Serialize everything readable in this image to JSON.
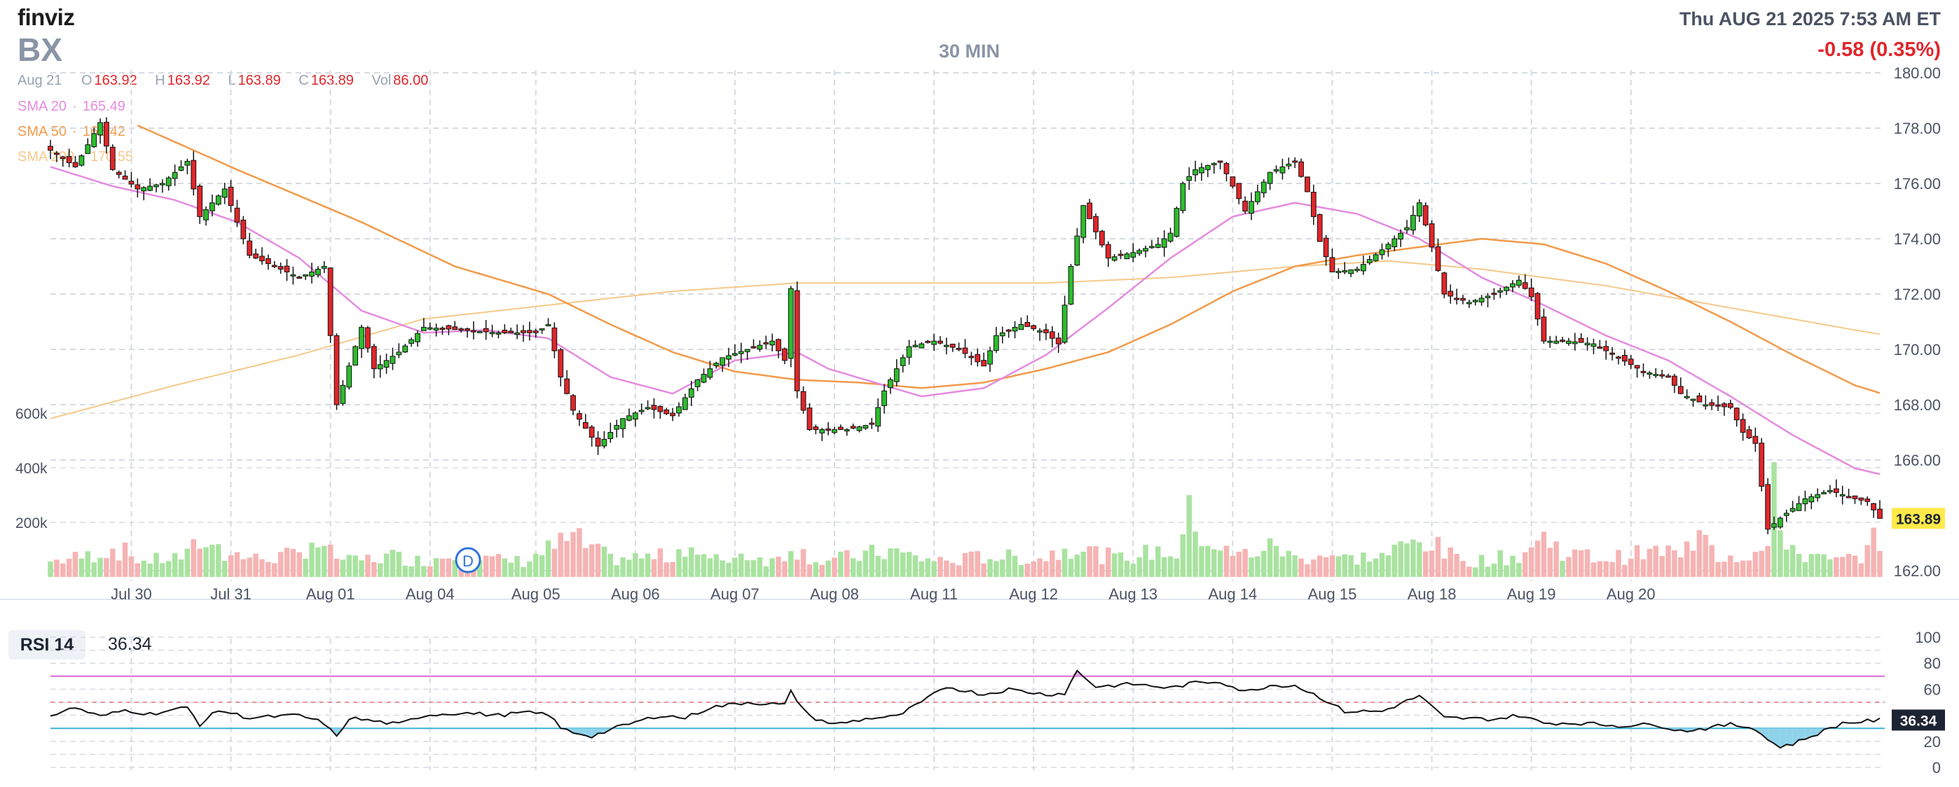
{
  "header": {
    "logo": "finviz",
    "ticker": "BX",
    "timeframe": "30 MIN",
    "datetime": "Thu AUG 21 2025 7:53 AM ET",
    "change": "-0.58 (0.35%)"
  },
  "ohlc": {
    "date": "Aug 21",
    "open_label": "O",
    "open": "163.92",
    "high_label": "H",
    "high": "163.92",
    "low_label": "L",
    "low": "163.89",
    "close_label": "C",
    "close": "163.89",
    "vol_label": "Vol",
    "vol": "86.00"
  },
  "indicators": {
    "sma20": {
      "label": "SMA 20",
      "value": "165.49",
      "color": "#e58be0"
    },
    "sma50": {
      "label": "SMA 50",
      "value": "168.42",
      "color": "#f29a4a"
    },
    "sma200": {
      "label": "SMA 200",
      "value": "170.55",
      "color": "#f5c98a"
    }
  },
  "rsi": {
    "label": "RSI 14",
    "value": "36.34"
  },
  "colors": {
    "up": "#2dbd2d",
    "down": "#e0262a",
    "vol_up": "#a9e3a0",
    "vol_down": "#f6b3b3",
    "grid": "#d7dbe2",
    "text": "#4b5263"
  },
  "earnings_marker": "D",
  "chart_data": [
    {
      "type": "candlestick",
      "title": "BX",
      "ylim": [
        161.5,
        180.0
      ],
      "price_ticks": [
        "180.00",
        "178.00",
        "176.00",
        "174.00",
        "172.00",
        "170.00",
        "168.00",
        "166.00",
        "162.00"
      ],
      "last_price": "163.89",
      "x_labels": [
        "Jul 30",
        "Jul 31",
        "Aug 01",
        "Aug 04",
        "Aug 05",
        "Aug 06",
        "Aug 07",
        "Aug 08",
        "Aug 11",
        "Aug 12",
        "Aug 13",
        "Aug 14",
        "Aug 15",
        "Aug 18",
        "Aug 19",
        "Aug 20"
      ],
      "volume_ticks": [
        "600k",
        "400k",
        "200k"
      ],
      "price_anchors": [
        [
          0,
          177.2
        ],
        [
          4,
          176.6
        ],
        [
          8,
          178.2
        ],
        [
          10,
          176.5
        ],
        [
          14,
          175.8
        ],
        [
          18,
          176.0
        ],
        [
          22,
          176.8
        ],
        [
          24,
          174.8
        ],
        [
          28,
          175.8
        ],
        [
          32,
          173.4
        ],
        [
          36,
          173.0
        ],
        [
          40,
          172.6
        ],
        [
          44,
          173.0
        ],
        [
          46,
          168.0
        ],
        [
          50,
          170.8
        ],
        [
          52,
          169.3
        ],
        [
          56,
          169.9
        ],
        [
          60,
          170.8
        ],
        [
          66,
          170.7
        ],
        [
          72,
          170.6
        ],
        [
          78,
          170.6
        ],
        [
          80,
          170.9
        ],
        [
          82,
          169.0
        ],
        [
          84,
          167.8
        ],
        [
          88,
          166.5
        ],
        [
          92,
          167.5
        ],
        [
          96,
          167.9
        ],
        [
          100,
          167.6
        ],
        [
          104,
          168.9
        ],
        [
          108,
          169.7
        ],
        [
          112,
          170.0
        ],
        [
          116,
          170.3
        ],
        [
          118,
          169.6
        ],
        [
          119,
          172.2
        ],
        [
          120,
          168.5
        ],
        [
          122,
          167.1
        ],
        [
          128,
          167.1
        ],
        [
          132,
          167.3
        ],
        [
          134,
          168.5
        ],
        [
          138,
          170.1
        ],
        [
          142,
          170.3
        ],
        [
          146,
          170.0
        ],
        [
          150,
          169.4
        ],
        [
          152,
          170.5
        ],
        [
          156,
          170.9
        ],
        [
          160,
          170.6
        ],
        [
          162,
          170.2
        ],
        [
          164,
          173.0
        ],
        [
          166,
          175.2
        ],
        [
          170,
          173.3
        ],
        [
          174,
          173.5
        ],
        [
          178,
          173.8
        ],
        [
          180,
          174.2
        ],
        [
          182,
          176.0
        ],
        [
          184,
          176.5
        ],
        [
          188,
          176.8
        ],
        [
          192,
          175.0
        ],
        [
          196,
          176.4
        ],
        [
          200,
          176.8
        ],
        [
          202,
          175.7
        ],
        [
          204,
          173.9
        ],
        [
          206,
          172.8
        ],
        [
          210,
          172.9
        ],
        [
          214,
          173.6
        ],
        [
          218,
          174.4
        ],
        [
          220,
          175.3
        ],
        [
          222,
          173.7
        ],
        [
          224,
          172.0
        ],
        [
          228,
          171.7
        ],
        [
          232,
          172.0
        ],
        [
          236,
          172.5
        ],
        [
          238,
          171.9
        ],
        [
          240,
          170.3
        ],
        [
          244,
          170.3
        ],
        [
          248,
          170.2
        ],
        [
          252,
          169.7
        ],
        [
          256,
          169.2
        ],
        [
          260,
          169.0
        ],
        [
          262,
          168.4
        ],
        [
          266,
          168.0
        ],
        [
          270,
          167.9
        ],
        [
          272,
          167.0
        ],
        [
          274,
          166.6
        ],
        [
          276,
          163.5
        ],
        [
          278,
          163.9
        ],
        [
          282,
          164.6
        ],
        [
          286,
          164.9
        ],
        [
          290,
          164.6
        ],
        [
          292,
          164.5
        ],
        [
          294,
          163.89
        ]
      ],
      "volume_anchors": [
        [
          0,
          60
        ],
        [
          6,
          80
        ],
        [
          10,
          110
        ],
        [
          12,
          95
        ],
        [
          15,
          60
        ],
        [
          22,
          80
        ],
        [
          24,
          140
        ],
        [
          26,
          110
        ],
        [
          27,
          165
        ],
        [
          28,
          95
        ],
        [
          33,
          70
        ],
        [
          40,
          85
        ],
        [
          42,
          150
        ],
        [
          44,
          100
        ],
        [
          48,
          60
        ],
        [
          55,
          80
        ],
        [
          60,
          60
        ],
        [
          66,
          100
        ],
        [
          68,
          70
        ],
        [
          76,
          60
        ],
        [
          84,
          150
        ],
        [
          86,
          120
        ],
        [
          90,
          70
        ],
        [
          100,
          80
        ],
        [
          102,
          130
        ],
        [
          106,
          60
        ],
        [
          112,
          90
        ],
        [
          116,
          60
        ],
        [
          118,
          90
        ],
        [
          119,
          130
        ],
        [
          121,
          90
        ],
        [
          124,
          60
        ],
        [
          135,
          100
        ],
        [
          140,
          70
        ],
        [
          145,
          60
        ],
        [
          150,
          80
        ],
        [
          159,
          70
        ],
        [
          165,
          130
        ],
        [
          168,
          90
        ],
        [
          172,
          70
        ],
        [
          178,
          100
        ],
        [
          181,
          90
        ],
        [
          183,
          230
        ],
        [
          186,
          140
        ],
        [
          190,
          80
        ],
        [
          194,
          100
        ],
        [
          197,
          120
        ],
        [
          200,
          70
        ],
        [
          205,
          90
        ],
        [
          208,
          70
        ],
        [
          214,
          80
        ],
        [
          221,
          150
        ],
        [
          224,
          90
        ],
        [
          228,
          60
        ],
        [
          236,
          80
        ],
        [
          240,
          150
        ],
        [
          244,
          90
        ],
        [
          250,
          70
        ],
        [
          256,
          90
        ],
        [
          260,
          100
        ],
        [
          262,
          70
        ],
        [
          264,
          150
        ],
        [
          266,
          230
        ],
        [
          268,
          80
        ],
        [
          274,
          90
        ],
        [
          276,
          110
        ],
        [
          277,
          320
        ],
        [
          278,
          180
        ],
        [
          281,
          90
        ],
        [
          286,
          60
        ],
        [
          290,
          70
        ],
        [
          292,
          110
        ],
        [
          294,
          160
        ]
      ],
      "sma20_anchors": [
        [
          0,
          176.6
        ],
        [
          10,
          175.9
        ],
        [
          20,
          175.4
        ],
        [
          30,
          174.6
        ],
        [
          40,
          173.3
        ],
        [
          50,
          171.4
        ],
        [
          60,
          170.6
        ],
        [
          70,
          170.7
        ],
        [
          80,
          170.4
        ],
        [
          90,
          169.0
        ],
        [
          100,
          168.4
        ],
        [
          110,
          169.6
        ],
        [
          120,
          169.9
        ],
        [
          125,
          169.3
        ],
        [
          140,
          168.3
        ],
        [
          150,
          168.6
        ],
        [
          160,
          169.8
        ],
        [
          170,
          171.5
        ],
        [
          180,
          173.3
        ],
        [
          190,
          174.8
        ],
        [
          200,
          175.3
        ],
        [
          210,
          174.9
        ],
        [
          220,
          174.0
        ],
        [
          230,
          172.6
        ],
        [
          240,
          171.6
        ],
        [
          250,
          170.5
        ],
        [
          260,
          169.6
        ],
        [
          270,
          168.3
        ],
        [
          280,
          166.9
        ],
        [
          290,
          165.7
        ],
        [
          294,
          165.49
        ]
      ],
      "sma50_anchors": [
        [
          14,
          178.1
        ],
        [
          30,
          176.5
        ],
        [
          50,
          174.6
        ],
        [
          65,
          173.0
        ],
        [
          80,
          172.0
        ],
        [
          90,
          170.9
        ],
        [
          100,
          169.9
        ],
        [
          110,
          169.2
        ],
        [
          120,
          168.9
        ],
        [
          130,
          168.8
        ],
        [
          140,
          168.6
        ],
        [
          150,
          168.8
        ],
        [
          160,
          169.3
        ],
        [
          170,
          169.9
        ],
        [
          180,
          170.9
        ],
        [
          190,
          172.1
        ],
        [
          200,
          173.0
        ],
        [
          210,
          173.4
        ],
        [
          220,
          173.7
        ],
        [
          230,
          174.0
        ],
        [
          240,
          173.8
        ],
        [
          250,
          173.1
        ],
        [
          260,
          172.1
        ],
        [
          270,
          171.0
        ],
        [
          280,
          169.8
        ],
        [
          290,
          168.7
        ],
        [
          294,
          168.42
        ]
      ],
      "sma200_anchors": [
        [
          0,
          167.5
        ],
        [
          20,
          168.7
        ],
        [
          40,
          169.8
        ],
        [
          60,
          171.1
        ],
        [
          80,
          171.6
        ],
        [
          100,
          172.1
        ],
        [
          120,
          172.4
        ],
        [
          140,
          172.4
        ],
        [
          160,
          172.4
        ],
        [
          180,
          172.6
        ],
        [
          200,
          173.0
        ],
        [
          215,
          173.2
        ],
        [
          230,
          172.9
        ],
        [
          250,
          172.3
        ],
        [
          270,
          171.5
        ],
        [
          290,
          170.7
        ],
        [
          294,
          170.55
        ]
      ]
    },
    {
      "type": "line",
      "title": "RSI 14",
      "ylim": [
        0,
        100
      ],
      "y_ticks": [
        "100",
        "80",
        "60",
        "40",
        "20",
        "0"
      ],
      "overbought": 70,
      "oversold": 30,
      "last_value": "36.34",
      "rsi_anchors": [
        [
          0,
          40
        ],
        [
          4,
          46
        ],
        [
          8,
          39
        ],
        [
          12,
          44
        ],
        [
          16,
          41
        ],
        [
          22,
          46
        ],
        [
          24,
          33
        ],
        [
          27,
          44
        ],
        [
          32,
          38
        ],
        [
          40,
          40
        ],
        [
          44,
          34
        ],
        [
          46,
          23
        ],
        [
          48,
          38
        ],
        [
          56,
          33
        ],
        [
          60,
          40
        ],
        [
          66,
          42
        ],
        [
          72,
          40
        ],
        [
          76,
          42
        ],
        [
          80,
          41
        ],
        [
          82,
          30
        ],
        [
          84,
          27
        ],
        [
          87,
          24
        ],
        [
          92,
          32
        ],
        [
          98,
          40
        ],
        [
          102,
          38
        ],
        [
          106,
          46
        ],
        [
          112,
          50
        ],
        [
          118,
          48
        ],
        [
          119,
          58
        ],
        [
          122,
          39
        ],
        [
          126,
          33
        ],
        [
          132,
          38
        ],
        [
          136,
          39
        ],
        [
          140,
          50
        ],
        [
          144,
          62
        ],
        [
          150,
          56
        ],
        [
          154,
          60
        ],
        [
          160,
          56
        ],
        [
          163,
          57
        ],
        [
          165,
          74
        ],
        [
          168,
          62
        ],
        [
          174,
          64
        ],
        [
          180,
          61
        ],
        [
          184,
          65
        ],
        [
          188,
          66
        ],
        [
          192,
          58
        ],
        [
          196,
          63
        ],
        [
          200,
          63
        ],
        [
          204,
          54
        ],
        [
          208,
          43
        ],
        [
          214,
          43
        ],
        [
          220,
          55
        ],
        [
          224,
          38
        ],
        [
          232,
          37
        ],
        [
          236,
          40
        ],
        [
          240,
          34
        ],
        [
          246,
          34
        ],
        [
          252,
          32
        ],
        [
          258,
          33
        ],
        [
          262,
          28
        ],
        [
          266,
          30
        ],
        [
          270,
          33
        ],
        [
          274,
          30
        ],
        [
          276,
          21
        ],
        [
          278,
          16
        ],
        [
          280,
          18
        ],
        [
          282,
          22
        ],
        [
          288,
          34
        ],
        [
          294,
          36.34
        ]
      ]
    }
  ]
}
